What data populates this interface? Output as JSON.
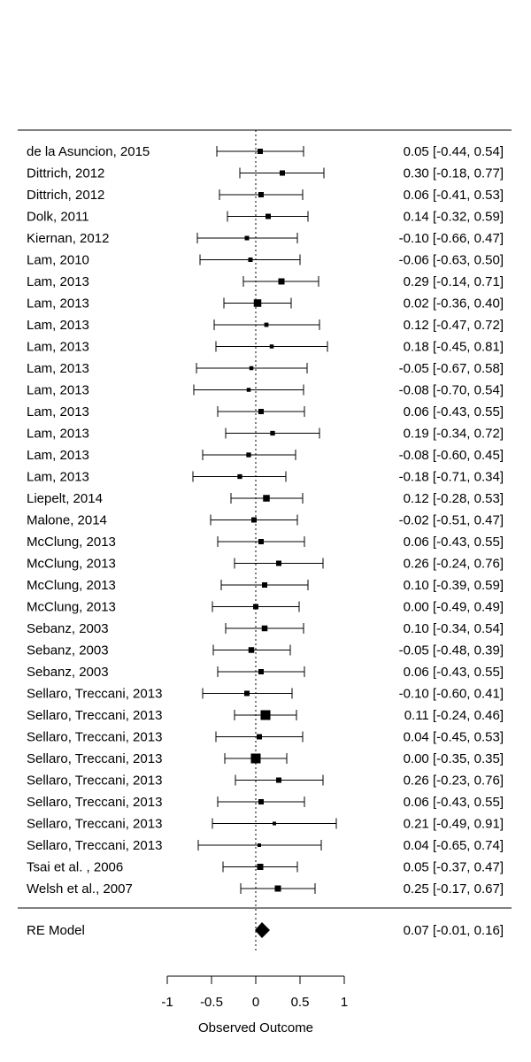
{
  "chart_data": {
    "type": "forest",
    "xlabel": "Observed Outcome",
    "xlim": [
      -1,
      1
    ],
    "xticks": [
      -1,
      -0.5,
      0,
      0.5,
      1
    ],
    "xtick_labels": [
      "-1",
      "-0.5",
      "0",
      "0.5",
      "1"
    ],
    "reference_line": 0,
    "studies": [
      {
        "label": "de la Asuncion, 2015",
        "estimate": 0.05,
        "ci": [
          -0.44,
          0.54
        ],
        "ci_text": "0.05 [-0.44, 0.54]",
        "weight": 0.4
      },
      {
        "label": "Dittrich, 2012",
        "estimate": 0.3,
        "ci": [
          -0.18,
          0.77
        ],
        "ci_text": "0.30 [-0.18, 0.77]",
        "weight": 0.4
      },
      {
        "label": "Dittrich, 2012",
        "estimate": 0.06,
        "ci": [
          -0.41,
          0.53
        ],
        "ci_text": "0.06 [-0.41, 0.53]",
        "weight": 0.4
      },
      {
        "label": "Dolk, 2011",
        "estimate": 0.14,
        "ci": [
          -0.32,
          0.59
        ],
        "ci_text": "0.14 [-0.32, 0.59]",
        "weight": 0.4
      },
      {
        "label": "Kiernan, 2012",
        "estimate": -0.1,
        "ci": [
          -0.66,
          0.47
        ],
        "ci_text": "-0.10 [-0.66, 0.47]",
        "weight": 0.3
      },
      {
        "label": "Lam, 2010",
        "estimate": -0.06,
        "ci": [
          -0.63,
          0.5
        ],
        "ci_text": "-0.06 [-0.63, 0.50]",
        "weight": 0.3
      },
      {
        "label": "Lam, 2013",
        "estimate": 0.29,
        "ci": [
          -0.14,
          0.71
        ],
        "ci_text": "0.29 [-0.14, 0.71]",
        "weight": 0.5
      },
      {
        "label": "Lam, 2013",
        "estimate": 0.02,
        "ci": [
          -0.36,
          0.4
        ],
        "ci_text": "0.02 [-0.36, 0.40]",
        "weight": 0.65
      },
      {
        "label": "Lam, 2013",
        "estimate": 0.12,
        "ci": [
          -0.47,
          0.72
        ],
        "ci_text": "0.12 [-0.47, 0.72]",
        "weight": 0.28
      },
      {
        "label": "Lam, 2013",
        "estimate": 0.18,
        "ci": [
          -0.45,
          0.81
        ],
        "ci_text": "0.18 [-0.45, 0.81]",
        "weight": 0.25
      },
      {
        "label": "Lam, 2013",
        "estimate": -0.05,
        "ci": [
          -0.67,
          0.58
        ],
        "ci_text": "-0.05 [-0.67, 0.58]",
        "weight": 0.25
      },
      {
        "label": "Lam, 2013",
        "estimate": -0.08,
        "ci": [
          -0.7,
          0.54
        ],
        "ci_text": "-0.08 [-0.70, 0.54]",
        "weight": 0.25
      },
      {
        "label": "Lam, 2013",
        "estimate": 0.06,
        "ci": [
          -0.43,
          0.55
        ],
        "ci_text": "0.06 [-0.43, 0.55]",
        "weight": 0.4
      },
      {
        "label": "Lam, 2013",
        "estimate": 0.19,
        "ci": [
          -0.34,
          0.72
        ],
        "ci_text": "0.19 [-0.34, 0.72]",
        "weight": 0.33
      },
      {
        "label": "Lam, 2013",
        "estimate": -0.08,
        "ci": [
          -0.6,
          0.45
        ],
        "ci_text": "-0.08 [-0.60, 0.45]",
        "weight": 0.33
      },
      {
        "label": "Lam, 2013",
        "estimate": -0.18,
        "ci": [
          -0.71,
          0.34
        ],
        "ci_text": "-0.18 [-0.71, 0.34]",
        "weight": 0.33
      },
      {
        "label": "Liepelt, 2014",
        "estimate": 0.12,
        "ci": [
          -0.28,
          0.53
        ],
        "ci_text": "0.12 [-0.28, 0.53]",
        "weight": 0.55
      },
      {
        "label": "Malone, 2014",
        "estimate": -0.02,
        "ci": [
          -0.51,
          0.47
        ],
        "ci_text": "-0.02 [-0.51, 0.47]",
        "weight": 0.4
      },
      {
        "label": "McClung, 2013",
        "estimate": 0.06,
        "ci": [
          -0.43,
          0.55
        ],
        "ci_text": "0.06 [-0.43, 0.55]",
        "weight": 0.4
      },
      {
        "label": "McClung, 2013",
        "estimate": 0.26,
        "ci": [
          -0.24,
          0.76
        ],
        "ci_text": "0.26 [-0.24, 0.76]",
        "weight": 0.4
      },
      {
        "label": "McClung, 2013",
        "estimate": 0.1,
        "ci": [
          -0.39,
          0.59
        ],
        "ci_text": "0.10 [-0.39, 0.59]",
        "weight": 0.4
      },
      {
        "label": "McClung, 2013",
        "estimate": 0.0,
        "ci": [
          -0.49,
          0.49
        ],
        "ci_text": "0.00 [-0.49, 0.49]",
        "weight": 0.4
      },
      {
        "label": "Sebanz, 2003",
        "estimate": 0.1,
        "ci": [
          -0.34,
          0.54
        ],
        "ci_text": "0.10 [-0.34, 0.54]",
        "weight": 0.45
      },
      {
        "label": "Sebanz, 2003",
        "estimate": -0.05,
        "ci": [
          -0.48,
          0.39
        ],
        "ci_text": "-0.05 [-0.48, 0.39]",
        "weight": 0.45
      },
      {
        "label": "Sebanz, 2003",
        "estimate": 0.06,
        "ci": [
          -0.43,
          0.55
        ],
        "ci_text": "0.06 [-0.43, 0.55]",
        "weight": 0.4
      },
      {
        "label": "Sellaro, Treccani, 2013",
        "estimate": -0.1,
        "ci": [
          -0.6,
          0.41
        ],
        "ci_text": "-0.10 [-0.60, 0.41]",
        "weight": 0.4
      },
      {
        "label": "Sellaro, Treccani, 2013",
        "estimate": 0.11,
        "ci": [
          -0.24,
          0.46
        ],
        "ci_text": "0.11 [-0.24, 0.46]",
        "weight": 0.9
      },
      {
        "label": "Sellaro, Treccani, 2013",
        "estimate": 0.04,
        "ci": [
          -0.45,
          0.53
        ],
        "ci_text": "0.04 [-0.45, 0.53]",
        "weight": 0.4
      },
      {
        "label": "Sellaro, Treccani, 2013",
        "estimate": 0.0,
        "ci": [
          -0.35,
          0.35
        ],
        "ci_text": "0.00 [-0.35, 0.35]",
        "weight": 0.9
      },
      {
        "label": "Sellaro, Treccani, 2013",
        "estimate": 0.26,
        "ci": [
          -0.23,
          0.76
        ],
        "ci_text": "0.26 [-0.23, 0.76]",
        "weight": 0.4
      },
      {
        "label": "Sellaro, Treccani, 2013",
        "estimate": 0.06,
        "ci": [
          -0.43,
          0.55
        ],
        "ci_text": "0.06 [-0.43, 0.55]",
        "weight": 0.4
      },
      {
        "label": "Sellaro, Treccani, 2013",
        "estimate": 0.21,
        "ci": [
          -0.49,
          0.91
        ],
        "ci_text": "0.21 [-0.49, 0.91]",
        "weight": 0.2
      },
      {
        "label": "Sellaro, Treccani, 2013",
        "estimate": 0.04,
        "ci": [
          -0.65,
          0.74
        ],
        "ci_text": "0.04 [-0.65, 0.74]",
        "weight": 0.2
      },
      {
        "label": "Tsai et al. , 2006",
        "estimate": 0.05,
        "ci": [
          -0.37,
          0.47
        ],
        "ci_text": "0.05 [-0.37, 0.47]",
        "weight": 0.5
      },
      {
        "label": "Welsh et al., 2007",
        "estimate": 0.25,
        "ci": [
          -0.17,
          0.67
        ],
        "ci_text": "0.25 [-0.17, 0.67]",
        "weight": 0.5
      }
    ],
    "summary": {
      "label": "RE Model",
      "estimate": 0.07,
      "ci": [
        -0.01,
        0.16
      ],
      "ci_text": "0.07 [-0.01, 0.16]"
    }
  }
}
